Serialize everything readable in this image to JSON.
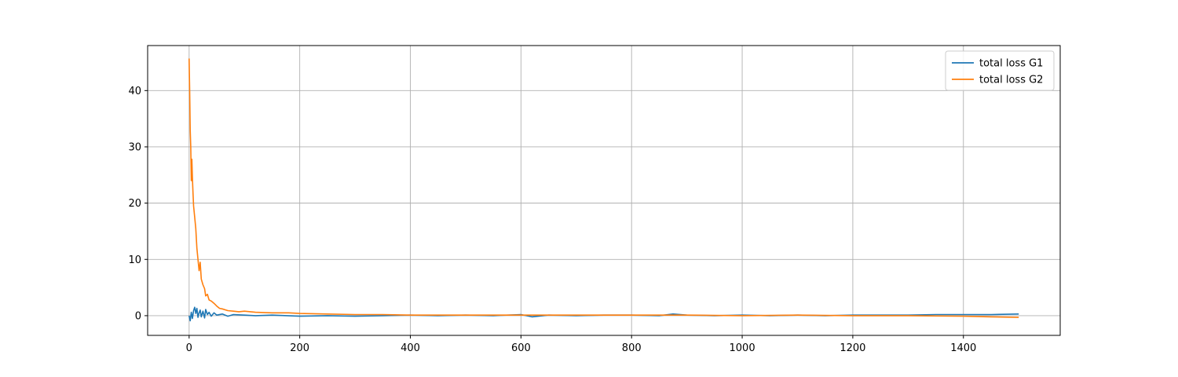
{
  "chart_data": {
    "type": "line",
    "title": "",
    "xlabel": "",
    "ylabel": "",
    "xlim": [
      -75,
      1575
    ],
    "ylim": [
      -3.5,
      48
    ],
    "xticks": [
      0,
      200,
      400,
      600,
      800,
      1000,
      1200,
      1400
    ],
    "yticks": [
      0,
      10,
      20,
      30,
      40
    ],
    "grid": true,
    "legend_position": "top-right",
    "series": [
      {
        "name": "total loss G1",
        "color": "#1f77b4",
        "x": [
          0,
          2,
          4,
          6,
          8,
          10,
          12,
          14,
          16,
          18,
          20,
          22,
          25,
          28,
          30,
          33,
          36,
          40,
          45,
          50,
          60,
          70,
          80,
          100,
          120,
          150,
          200,
          250,
          300,
          350,
          400,
          450,
          500,
          550,
          600,
          620,
          650,
          700,
          750,
          800,
          850,
          875,
          900,
          950,
          1000,
          1050,
          1100,
          1150,
          1200,
          1250,
          1300,
          1350,
          1400,
          1450,
          1500
        ],
        "y": [
          0.0,
          -0.9,
          0.6,
          -0.5,
          0.9,
          1.5,
          0.4,
          1.3,
          -0.3,
          0.5,
          1.0,
          -0.2,
          0.8,
          -0.4,
          1.1,
          0.2,
          0.6,
          -0.1,
          0.5,
          0.1,
          0.3,
          -0.1,
          0.2,
          0.1,
          0.0,
          0.1,
          -0.1,
          0.0,
          -0.1,
          0.0,
          0.1,
          0.0,
          0.1,
          0.0,
          0.2,
          -0.2,
          0.1,
          0.0,
          0.1,
          0.1,
          0.0,
          0.3,
          0.1,
          0.0,
          0.1,
          0.0,
          0.1,
          0.0,
          0.1,
          0.1,
          0.1,
          0.2,
          0.2,
          0.2,
          0.3
        ]
      },
      {
        "name": "total loss G2",
        "color": "#ff7f0e",
        "x": [
          0,
          1,
          2,
          3,
          4,
          5,
          6,
          7,
          8,
          10,
          12,
          14,
          16,
          18,
          20,
          22,
          25,
          28,
          30,
          33,
          36,
          40,
          45,
          50,
          55,
          60,
          70,
          80,
          90,
          100,
          120,
          150,
          180,
          200,
          250,
          300,
          350,
          400,
          450,
          500,
          550,
          600,
          700,
          800,
          900,
          1000,
          1100,
          1200,
          1300,
          1400,
          1450,
          1500
        ],
        "y": [
          45.7,
          40.0,
          33.0,
          30.0,
          24.0,
          27.8,
          24.5,
          22.0,
          19.5,
          17.5,
          15.5,
          12.0,
          10.0,
          8.0,
          9.5,
          6.5,
          5.5,
          4.8,
          3.5,
          3.8,
          2.8,
          2.6,
          2.2,
          1.7,
          1.3,
          1.2,
          0.9,
          0.8,
          0.7,
          0.8,
          0.6,
          0.5,
          0.5,
          0.4,
          0.3,
          0.2,
          0.2,
          0.1,
          0.1,
          0.1,
          0.1,
          0.1,
          0.1,
          0.1,
          0.1,
          0.0,
          0.1,
          0.0,
          0.0,
          -0.1,
          -0.2,
          -0.3
        ]
      }
    ]
  }
}
